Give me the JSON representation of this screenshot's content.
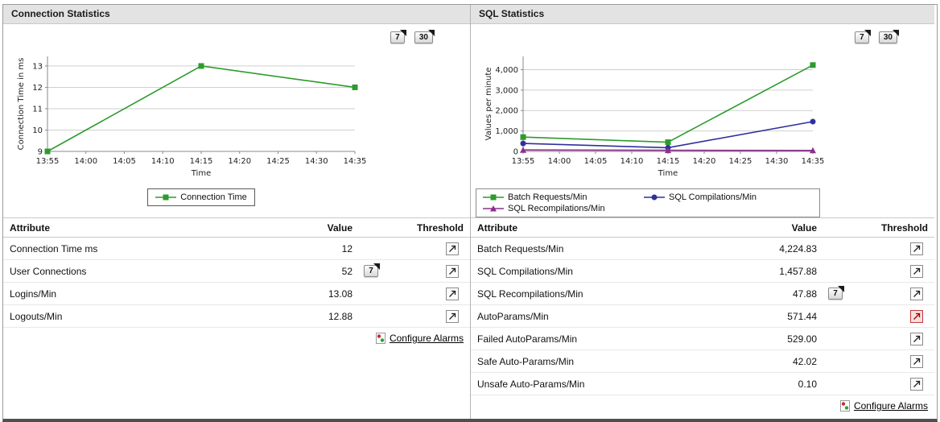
{
  "colors": {
    "green": "#2d9b2d",
    "navy": "#30309c",
    "purple": "#8e2f8e",
    "header_bg": "#e3e3e3",
    "grid": "#cfcfcf",
    "alarm_red": "#c43b3b"
  },
  "left_panel": {
    "title": "Connection Statistics",
    "period_buttons": [
      "7",
      "30"
    ],
    "table": {
      "headers": {
        "attribute": "Attribute",
        "value": "Value",
        "threshold": "Threshold"
      },
      "rows": [
        {
          "attribute": "Connection Time ms",
          "value": "12",
          "period_button": "",
          "threshold_alarm": false
        },
        {
          "attribute": "User Connections",
          "value": "52",
          "period_button": "7",
          "threshold_alarm": false
        },
        {
          "attribute": "Logins/Min",
          "value": "13.08",
          "period_button": "",
          "threshold_alarm": false
        },
        {
          "attribute": "Logouts/Min",
          "value": "12.88",
          "period_button": "",
          "threshold_alarm": false
        }
      ],
      "configure_alarms_label": "Configure Alarms"
    }
  },
  "right_panel": {
    "title": "SQL Statistics",
    "period_buttons": [
      "7",
      "30"
    ],
    "table": {
      "headers": {
        "attribute": "Attribute",
        "value": "Value",
        "threshold": "Threshold"
      },
      "rows": [
        {
          "attribute": "Batch Requests/Min",
          "value": "4,224.83",
          "period_button": "",
          "threshold_alarm": false
        },
        {
          "attribute": "SQL Compilations/Min",
          "value": "1,457.88",
          "period_button": "",
          "threshold_alarm": false
        },
        {
          "attribute": "SQL Recompilations/Min",
          "value": "47.88",
          "period_button": "7",
          "threshold_alarm": false
        },
        {
          "attribute": "AutoParams/Min",
          "value": "571.44",
          "period_button": "",
          "threshold_alarm": true
        },
        {
          "attribute": "Failed AutoParams/Min",
          "value": "529.00",
          "period_button": "",
          "threshold_alarm": false
        },
        {
          "attribute": "Safe Auto-Params/Min",
          "value": "42.02",
          "period_button": "",
          "threshold_alarm": false
        },
        {
          "attribute": "Unsafe Auto-Params/Min",
          "value": "0.10",
          "period_button": "",
          "threshold_alarm": false
        }
      ],
      "configure_alarms_label": "Configure Alarms"
    }
  },
  "chart_data": [
    {
      "type": "line",
      "title": "Connection Statistics",
      "ylabel": "Connection Time in ms",
      "xlabel": "Time",
      "x_ticks": [
        "13:55",
        "14:00",
        "14:05",
        "14:10",
        "14:15",
        "14:20",
        "14:25",
        "14:30",
        "14:35"
      ],
      "y_ticks": [
        9,
        10,
        11,
        12,
        13
      ],
      "ylim": [
        9,
        13.45
      ],
      "grid": true,
      "legend_position": "bottom-center",
      "series": [
        {
          "name": "Connection Time",
          "color": "#2d9b2d",
          "marker": "square",
          "x": [
            "13:55",
            "14:15",
            "14:35"
          ],
          "values": [
            9,
            13,
            12
          ]
        }
      ]
    },
    {
      "type": "line",
      "title": "SQL Statistics",
      "ylabel": "Values per minute",
      "xlabel": "Time",
      "x_ticks": [
        "13:55",
        "14:00",
        "14:05",
        "14:10",
        "14:15",
        "14:20",
        "14:25",
        "14:30",
        "14:35"
      ],
      "y_ticks": [
        0,
        1000,
        2000,
        3000,
        4000
      ],
      "ylim": [
        0,
        4650
      ],
      "grid": true,
      "legend_position": "bottom-left-box",
      "series": [
        {
          "name": "Batch Requests/Min",
          "color": "#2d9b2d",
          "marker": "square",
          "x": [
            "13:55",
            "14:15",
            "14:35"
          ],
          "values": [
            700,
            450,
            4224.83
          ]
        },
        {
          "name": "SQL Compilations/Min",
          "color": "#30309c",
          "marker": "circle",
          "x": [
            "13:55",
            "14:15",
            "14:35"
          ],
          "values": [
            390,
            180,
            1457.88
          ]
        },
        {
          "name": "SQL Recompilations/Min",
          "color": "#8e2f8e",
          "marker": "triangle",
          "x": [
            "13:55",
            "14:15",
            "14:35"
          ],
          "values": [
            70,
            55,
            47.88
          ]
        }
      ]
    }
  ]
}
